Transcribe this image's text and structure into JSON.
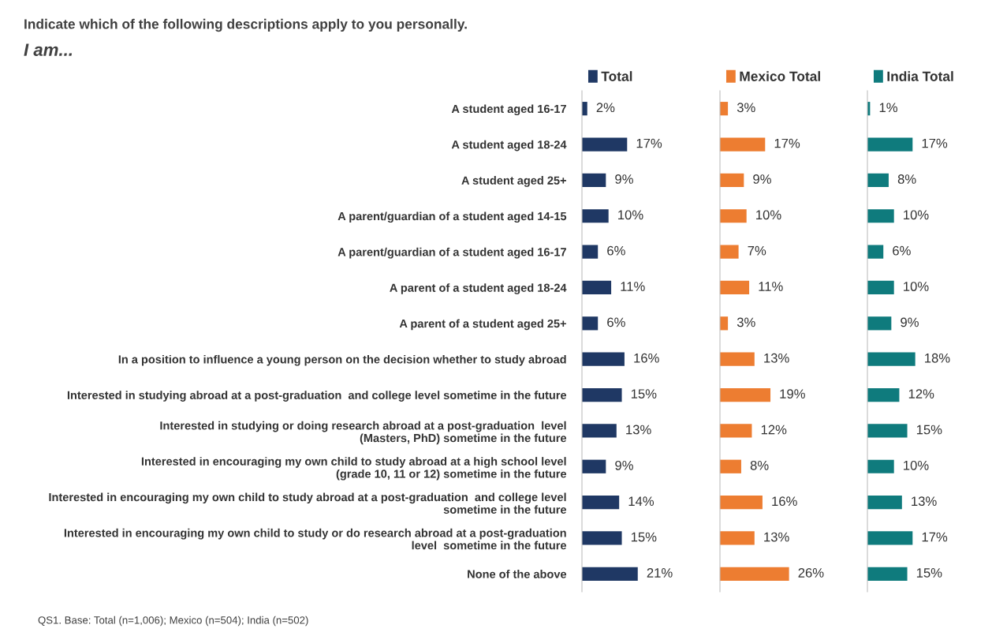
{
  "chart_data": [
    {
      "type": "bar",
      "orientation": "horizontal",
      "title": "Indicate which of the following descriptions apply to you personally.",
      "subtitle": "I am...",
      "annotations": [
        "QS1. Base: Total (n=1,006); Mexico (n=504); India (n=502)"
      ],
      "categories": [
        "A student aged 16-17",
        "A student aged 18-24",
        "A student aged 25+",
        "A parent/guardian of a student aged 14-15",
        "A parent/guardian of a student aged 16-17",
        "A parent of a student aged 18-24",
        "A parent of a student aged 25+",
        "In a position to influence a young person on the decision whether to study abroad",
        "Interested in studying abroad at a post-graduation  and college level sometime in the future",
        "Interested in studying or doing research abroad at a post-graduation  level\n(Masters, PhD) sometime in the future",
        "Interested in encouraging my own child to study abroad at a high school level\n(grade 10, 11 or 12) sometime in the future",
        "Interested in encouraging my own child to study abroad at a post-graduation  and college level\nsometime in the future",
        "Interested in encouraging my own child to study or do research abroad at a post-graduation\nlevel  sometime in the future",
        "None of the above"
      ],
      "series": [
        {
          "name": "Total",
          "color": "#1f3864",
          "values": [
            2,
            17,
            9,
            10,
            6,
            11,
            6,
            16,
            15,
            13,
            9,
            14,
            15,
            21
          ],
          "value_labels": [
            "2%",
            "17%",
            "9%",
            "10%",
            "6%",
            "11%",
            "6%",
            "16%",
            "15%",
            "13%",
            "9%",
            "14%",
            "15%",
            "21%"
          ]
        }
      ],
      "legend": "top",
      "grid": false
    },
    {
      "type": "bar",
      "orientation": "horizontal",
      "categories": [
        null,
        null,
        null,
        null,
        null,
        null,
        null,
        null,
        null,
        null,
        null,
        null,
        null,
        null
      ],
      "series": [
        {
          "name": "Mexico Total",
          "color": "#ed7d31",
          "values": [
            3,
            17,
            9,
            10,
            7,
            11,
            3,
            13,
            19,
            12,
            8,
            16,
            13,
            26
          ],
          "value_labels": [
            "3%",
            "17%",
            "9%",
            "10%",
            "7%",
            "11%",
            "3%",
            "13%",
            "19%",
            "12%",
            "8%",
            "16%",
            "13%",
            "26%"
          ]
        }
      ],
      "legend": "top",
      "grid": false
    },
    {
      "type": "bar",
      "orientation": "horizontal",
      "categories": [
        null,
        null,
        null,
        null,
        null,
        null,
        null,
        null,
        null,
        null,
        null,
        null,
        null,
        null
      ],
      "series": [
        {
          "name": "India Total",
          "color": "#0f7b7d",
          "values": [
            1,
            17,
            8,
            10,
            6,
            10,
            9,
            18,
            12,
            15,
            10,
            13,
            17,
            15
          ],
          "value_labels": [
            "1%",
            "17%",
            "8%",
            "10%",
            "6%",
            "10%",
            "9%",
            "18%",
            "12%",
            "15%",
            "10%",
            "13%",
            "17%",
            "15%"
          ]
        }
      ],
      "legend": "top",
      "grid": false
    }
  ]
}
